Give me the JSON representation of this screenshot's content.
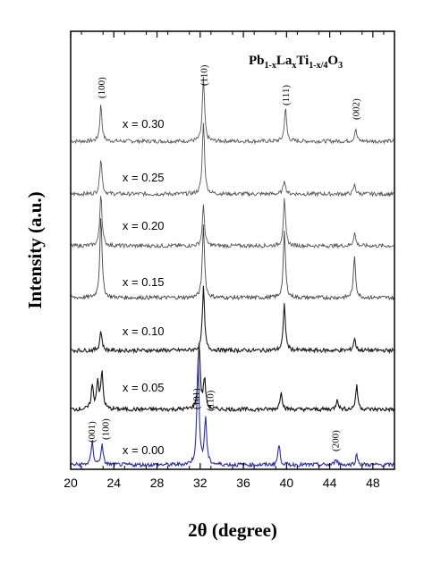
{
  "chart_data": {
    "type": "line",
    "title": "Pb1-xLaxTi1-x/4O3",
    "formula": {
      "parts": [
        {
          "text": "Pb",
          "sub": false
        },
        {
          "text": "1-x",
          "sub": true
        },
        {
          "text": "La",
          "sub": false
        },
        {
          "text": "x",
          "sub": true
        },
        {
          "text": "Ti",
          "sub": false
        },
        {
          "text": "1-x/4",
          "sub": true
        },
        {
          "text": "O",
          "sub": false
        },
        {
          "text": "3",
          "sub": true
        }
      ]
    },
    "xlabel": "2θ (degree)",
    "ylabel": "Intensity (a.u.)",
    "xlim": [
      20,
      50
    ],
    "xticks": [
      20,
      24,
      28,
      32,
      36,
      40,
      44,
      48
    ],
    "y_tick_labels": false,
    "grid": false,
    "series": [
      {
        "name": "x = 0.30",
        "color": "#555555",
        "peaks": [
          [
            22.8,
            0.55
          ],
          [
            32.3,
            0.95
          ],
          [
            39.9,
            0.5
          ],
          [
            46.4,
            0.18
          ]
        ]
      },
      {
        "name": "x = 0.25",
        "color": "#555555",
        "peaks": [
          [
            22.8,
            0.55
          ],
          [
            32.3,
            1.1
          ],
          [
            39.8,
            0.22
          ],
          [
            46.3,
            0.14
          ]
        ]
      },
      {
        "name": "x = 0.20",
        "color": "#555555",
        "peaks": [
          [
            22.8,
            0.8
          ],
          [
            32.3,
            0.6
          ],
          [
            39.8,
            0.7
          ],
          [
            46.3,
            0.2
          ]
        ]
      },
      {
        "name": "x = 0.15",
        "color": "#444444",
        "peaks": [
          [
            22.8,
            1.25
          ],
          [
            32.3,
            1.1
          ],
          [
            39.8,
            1.0
          ],
          [
            46.3,
            0.62
          ]
        ]
      },
      {
        "name": "x = 0.10",
        "color": "#1a1a1a",
        "peaks": [
          [
            22.8,
            0.3
          ],
          [
            32.3,
            0.95
          ],
          [
            39.8,
            0.7
          ],
          [
            46.3,
            0.18
          ]
        ]
      },
      {
        "name": "x = 0.05",
        "color": "#111111",
        "peaks": [
          [
            22.0,
            0.35
          ],
          [
            22.5,
            0.42
          ],
          [
            22.9,
            0.55
          ],
          [
            31.9,
            1.0
          ],
          [
            32.4,
            0.45
          ],
          [
            39.5,
            0.28
          ],
          [
            44.7,
            0.16
          ],
          [
            46.5,
            0.35
          ]
        ]
      },
      {
        "name": "x = 0.00",
        "color": "#2b2bb0",
        "peaks": [
          [
            22.0,
            0.35
          ],
          [
            22.9,
            0.3
          ],
          [
            31.8,
            1.6
          ],
          [
            32.5,
            0.7
          ],
          [
            39.3,
            0.3
          ],
          [
            44.6,
            0.1
          ],
          [
            46.5,
            0.15
          ]
        ]
      }
    ],
    "peak_labels_top": [
      {
        "text": "(100)",
        "x": 22.8
      },
      {
        "text": "(110)",
        "x": 32.3
      },
      {
        "text": "(111)",
        "x": 39.9
      },
      {
        "text": "(002)",
        "x": 46.4
      }
    ],
    "peak_labels_bottom": [
      {
        "text": "(001)",
        "x": 21.9
      },
      {
        "text": "(100)",
        "x": 23.2
      },
      {
        "text": "(101)",
        "x": 31.6
      },
      {
        "text": "(110)",
        "x": 32.9
      },
      {
        "text": "(200)",
        "x": 44.5
      }
    ]
  }
}
